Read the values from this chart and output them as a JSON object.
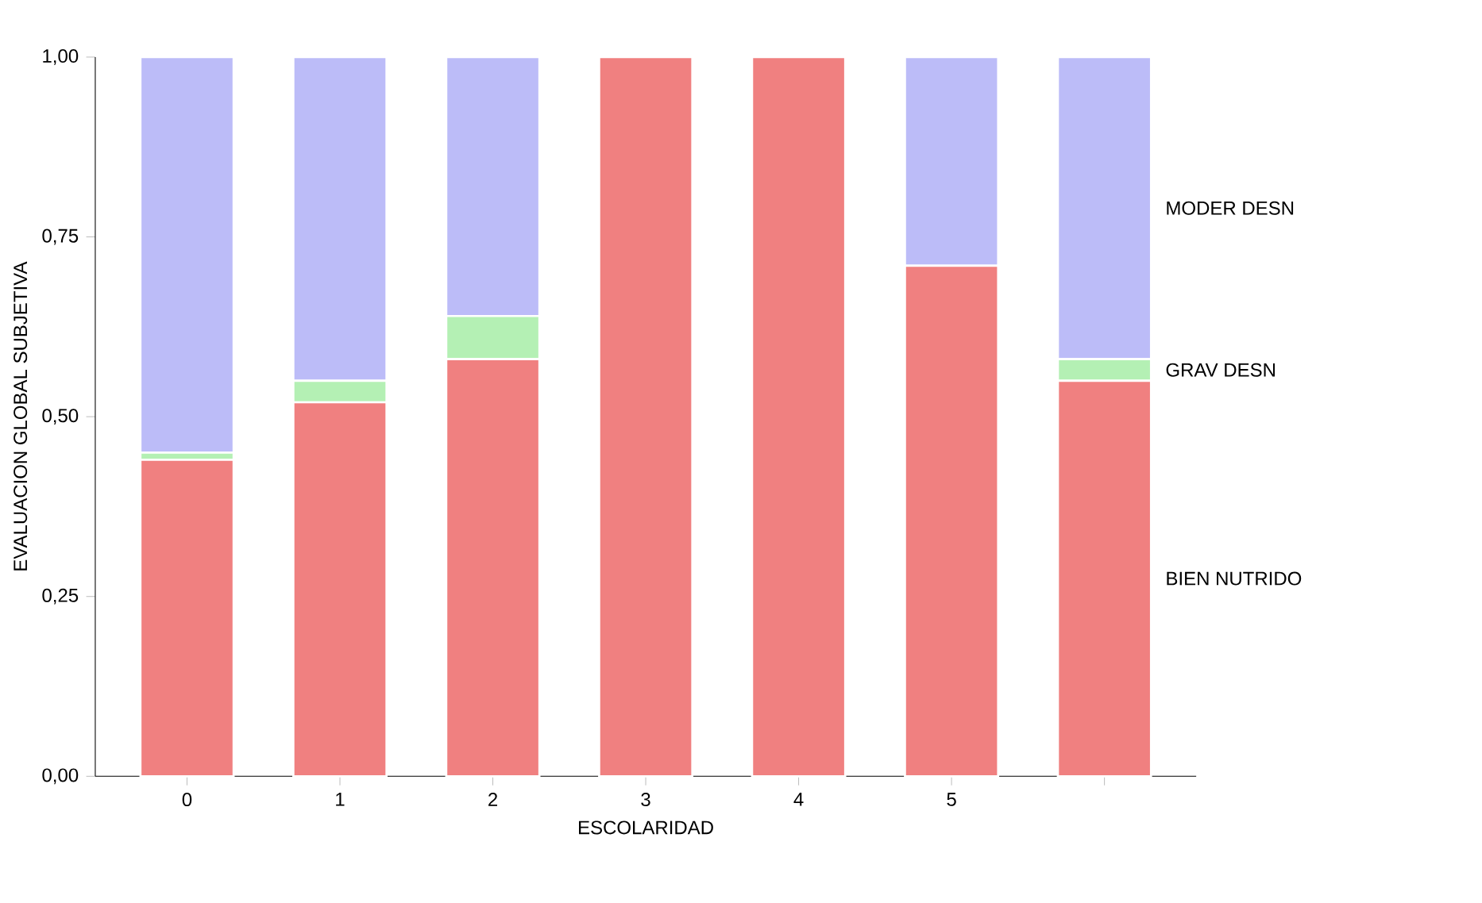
{
  "chart_data": {
    "type": "bar",
    "stacked": true,
    "xlabel": "ESCOLARIDAD",
    "ylabel": "EVALUACION GLOBAL SUBJETIVA",
    "categories": [
      "0",
      "1",
      "2",
      "3",
      "4",
      "5",
      null
    ],
    "series": [
      {
        "name": "BIEN NUTRIDO",
        "color": "#f08080",
        "values": [
          0.44,
          0.52,
          0.58,
          1.0,
          1.0,
          0.71,
          0.55
        ]
      },
      {
        "name": "GRAV DESN",
        "color": "#b4f0b4",
        "values": [
          0.01,
          0.03,
          0.06,
          0,
          0,
          0,
          0.03
        ]
      },
      {
        "name": "MODER DESN",
        "color": "#bcbcf8",
        "values": [
          0.55,
          0.45,
          0.36,
          0,
          0,
          0.29,
          0.42
        ]
      }
    ],
    "ylim": [
      0,
      1
    ],
    "yticks": [
      {
        "value": 0,
        "label": "0,00"
      },
      {
        "value": 0.25,
        "label": "0,25"
      },
      {
        "value": 0.5,
        "label": "0,50"
      },
      {
        "value": 0.75,
        "label": "0,75"
      },
      {
        "value": 1,
        "label": "1,00"
      }
    ]
  }
}
